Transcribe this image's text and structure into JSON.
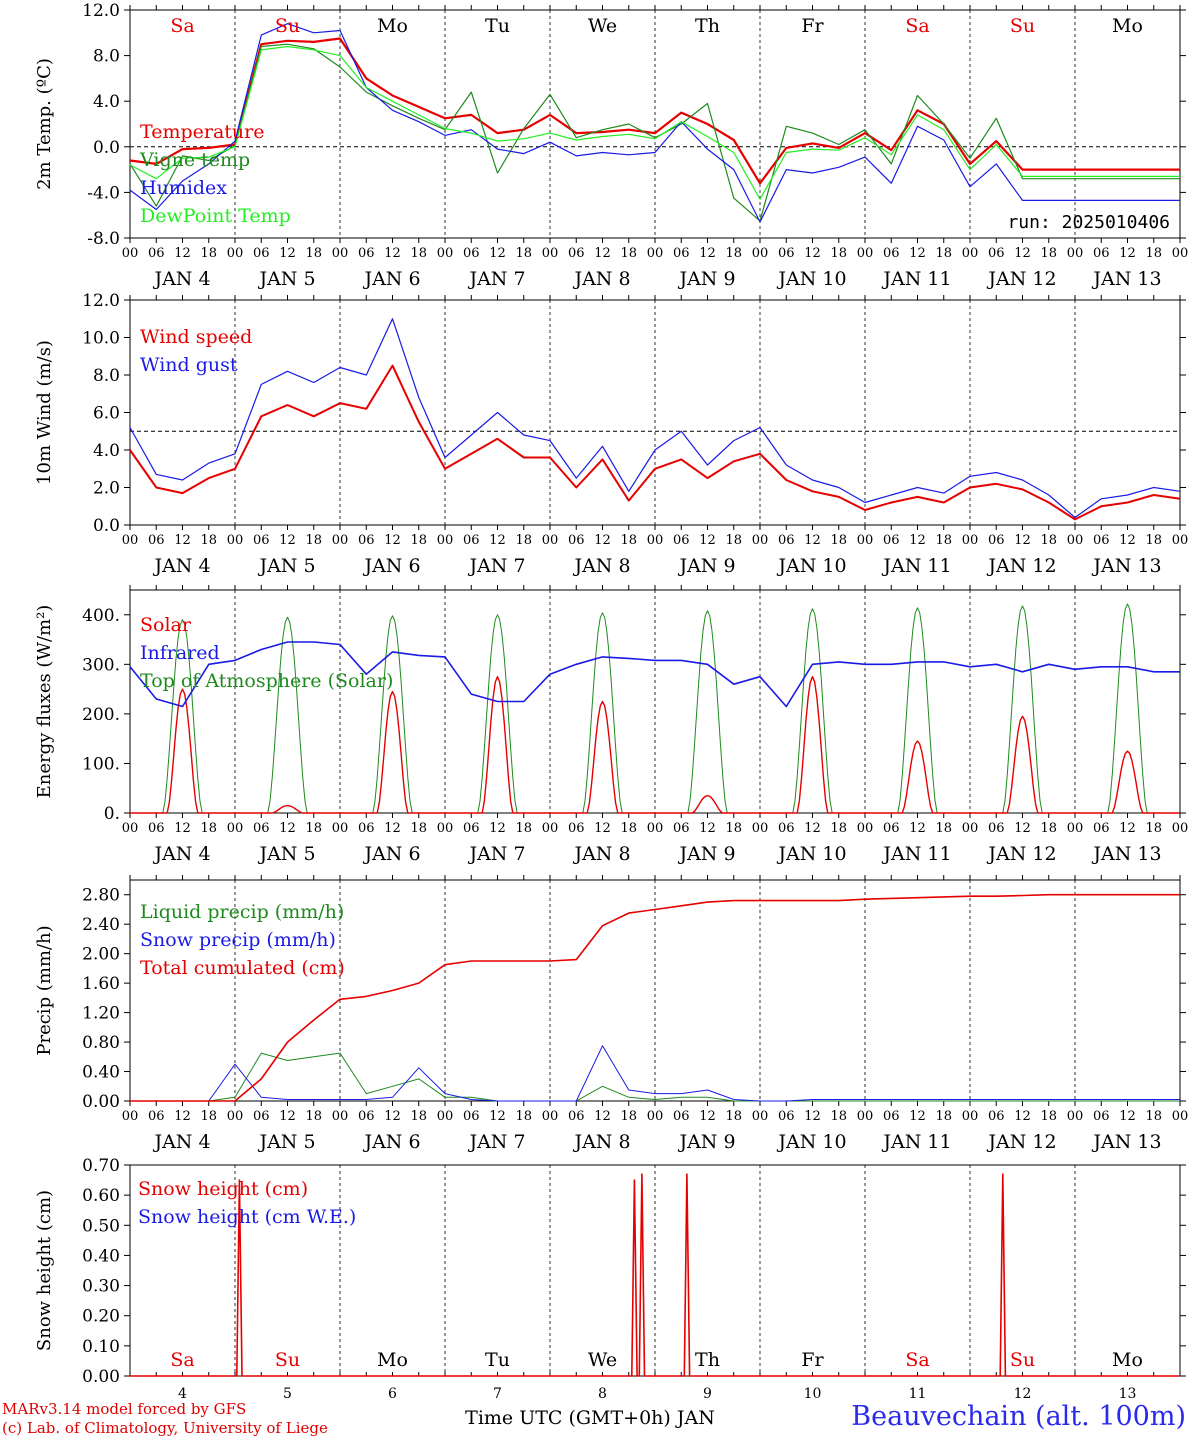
{
  "footer": {
    "credit_line1": "MARv3.14 model forced by GFS",
    "credit_line2": "(c) Lab. of Climatology, University of Liege",
    "station": "Beauvechain (alt. 100m)",
    "xaxis_label": "Time UTC (GMT+0h) JAN"
  },
  "x_axis": {
    "hour_ticks": [
      "00",
      "06",
      "12",
      "18"
    ],
    "date_labels": [
      "JAN  4",
      "JAN  5",
      "JAN  6",
      "JAN  7",
      "JAN  8",
      "JAN  9",
      "JAN 10",
      "JAN 11",
      "JAN 12",
      "JAN 13"
    ],
    "day_names": [
      "Sa",
      "Su",
      "Mo",
      "Tu",
      "We",
      "Th",
      "Fr",
      "Sa",
      "Su",
      "Mo"
    ],
    "weekend_indices": [
      0,
      1,
      7,
      8
    ],
    "bottom_day_numbers": [
      "4",
      "5",
      "6",
      "7",
      "8",
      "9",
      "10",
      "11",
      "12",
      "13"
    ]
  },
  "colors": {
    "red": "#e60000",
    "green": "#1e8a1e",
    "blue": "#1a1ae6",
    "lightgreen": "#22ee22",
    "black": "#000000"
  },
  "chart_data": [
    {
      "type": "line",
      "ylabel": "2m Temp. (ºC)",
      "ylim": [
        -8,
        12
      ],
      "yticks": [
        "-8.0",
        "-4.0",
        "0.0",
        "4.0",
        "8.0",
        "12.0"
      ],
      "ref_line": 0,
      "run_label": "run: 2025010406",
      "x_hours": [
        0,
        6,
        12,
        18,
        24,
        30,
        36,
        42,
        48,
        54,
        60,
        66,
        72,
        78,
        84,
        90,
        96,
        102,
        108,
        114,
        120,
        126,
        132,
        138,
        144,
        150,
        156,
        162,
        168,
        174,
        180,
        186,
        192,
        198,
        204,
        210,
        216,
        222,
        228,
        234,
        240
      ],
      "series": [
        {
          "name": "Temperature",
          "color": "red",
          "width": 2.2,
          "values": [
            -1.2,
            -1.5,
            -0.2,
            -0.1,
            0.2,
            9.0,
            9.3,
            9.2,
            9.5,
            6.0,
            4.5,
            3.5,
            2.5,
            2.8,
            1.2,
            1.5,
            2.8,
            1.2,
            1.3,
            1.5,
            1.2,
            3.0,
            2.0,
            0.6,
            -3.2,
            -0.1,
            0.3,
            -0.1,
            1.2,
            -0.3,
            3.2,
            2.0,
            -1.5,
            0.5,
            -2.0,
            -2.0,
            -2.0,
            -2.0,
            -2.0,
            -2.0,
            -2.0
          ]
        },
        {
          "name": "Vigne temp",
          "color": "green",
          "width": 1.2,
          "values": [
            -1.5,
            -5.2,
            -0.8,
            -1.2,
            0.1,
            8.8,
            9.0,
            8.6,
            7.0,
            4.8,
            3.6,
            2.5,
            1.5,
            4.8,
            -2.3,
            1.6,
            4.6,
            0.8,
            1.5,
            2.0,
            0.8,
            2.0,
            3.8,
            -4.5,
            -6.5,
            1.8,
            1.2,
            0.2,
            1.5,
            -1.5,
            4.5,
            2.0,
            -1.0,
            2.5,
            -2.8,
            -2.8,
            -2.8,
            -2.8,
            -2.8,
            -2.8,
            -2.8
          ]
        },
        {
          "name": "Humidex",
          "color": "blue",
          "width": 1.2,
          "values": [
            -3.8,
            -5.5,
            -3.0,
            -1.5,
            0.5,
            9.8,
            10.8,
            10.0,
            10.2,
            5.2,
            3.2,
            2.2,
            1.0,
            1.5,
            -0.2,
            -0.6,
            0.4,
            -0.8,
            -0.5,
            -0.7,
            -0.5,
            2.2,
            -0.2,
            -2.0,
            -6.6,
            -2.0,
            -2.3,
            -1.8,
            -0.9,
            -3.2,
            1.8,
            0.6,
            -3.5,
            -1.5,
            -4.7,
            -4.7,
            -4.7,
            -4.7,
            -4.7,
            -4.7,
            -4.7
          ]
        },
        {
          "name": "DewPoint Temp",
          "color": "lightgreen",
          "width": 1.2,
          "values": [
            -1.6,
            -2.8,
            -1.0,
            -0.9,
            0.0,
            8.5,
            8.8,
            8.5,
            8.0,
            5.2,
            4.0,
            2.8,
            1.6,
            1.2,
            0.5,
            0.7,
            1.2,
            0.6,
            0.9,
            1.1,
            0.7,
            2.2,
            0.9,
            -0.5,
            -4.6,
            -0.5,
            -0.2,
            -0.3,
            0.8,
            -0.7,
            2.8,
            1.5,
            -2.0,
            0.2,
            -2.6,
            -2.6,
            -2.6,
            -2.6,
            -2.6,
            -2.6,
            -2.6
          ]
        }
      ]
    },
    {
      "type": "line",
      "ylabel": "10m Wind (m/s)",
      "ylim": [
        0,
        12
      ],
      "yticks": [
        "0.0",
        "2.0",
        "4.0",
        "6.0",
        "8.0",
        "10.0",
        "12.0"
      ],
      "ref_line": 5,
      "x_hours": [
        0,
        6,
        12,
        18,
        24,
        30,
        36,
        42,
        48,
        54,
        60,
        66,
        72,
        78,
        84,
        90,
        96,
        102,
        108,
        114,
        120,
        126,
        132,
        138,
        144,
        150,
        156,
        162,
        168,
        174,
        180,
        186,
        192,
        198,
        204,
        210,
        216,
        222,
        228,
        234,
        240
      ],
      "series": [
        {
          "name": "Wind speed",
          "color": "red",
          "width": 2.0,
          "values": [
            4.0,
            2.0,
            1.7,
            2.5,
            3.0,
            5.8,
            6.4,
            5.8,
            6.5,
            6.2,
            8.5,
            5.5,
            3.0,
            3.8,
            4.6,
            3.6,
            3.6,
            2.0,
            3.5,
            1.3,
            3.0,
            3.5,
            2.5,
            3.4,
            3.8,
            2.4,
            1.8,
            1.5,
            0.8,
            1.2,
            1.5,
            1.2,
            2.0,
            2.2,
            1.9,
            1.2,
            0.3,
            1.0,
            1.2,
            1.6,
            1.4
          ]
        },
        {
          "name": "Wind gust",
          "color": "blue",
          "width": 1.2,
          "values": [
            5.2,
            2.7,
            2.4,
            3.3,
            3.8,
            7.5,
            8.2,
            7.6,
            8.4,
            8.0,
            11.0,
            6.8,
            3.6,
            4.8,
            6.0,
            4.8,
            4.5,
            2.5,
            4.2,
            1.8,
            4.0,
            5.0,
            3.2,
            4.5,
            5.2,
            3.2,
            2.4,
            2.0,
            1.2,
            1.6,
            2.0,
            1.7,
            2.6,
            2.8,
            2.4,
            1.6,
            0.4,
            1.4,
            1.6,
            2.0,
            1.8
          ]
        }
      ]
    },
    {
      "type": "line",
      "ylabel": "Energy fluxes (W/m²)",
      "ylim": [
        0,
        450
      ],
      "yticks": [
        "0.",
        "100.",
        "200.",
        "300.",
        "400."
      ],
      "solar_peaks": [
        {
          "day": 0,
          "value": 250
        },
        {
          "day": 1,
          "value": 15
        },
        {
          "day": 2,
          "value": 245
        },
        {
          "day": 3,
          "value": 275
        },
        {
          "day": 4,
          "value": 225
        },
        {
          "day": 5,
          "value": 35
        },
        {
          "day": 6,
          "value": 275
        },
        {
          "day": 7,
          "value": 145
        },
        {
          "day": 8,
          "value": 195
        },
        {
          "day": 9,
          "value": 125
        }
      ],
      "toa_peaks": [
        {
          "day": 0,
          "value": 390
        },
        {
          "day": 1,
          "value": 395
        },
        {
          "day": 2,
          "value": 398
        },
        {
          "day": 3,
          "value": 400
        },
        {
          "day": 4,
          "value": 404
        },
        {
          "day": 5,
          "value": 408
        },
        {
          "day": 6,
          "value": 412
        },
        {
          "day": 7,
          "value": 414
        },
        {
          "day": 8,
          "value": 418
        },
        {
          "day": 9,
          "value": 422
        }
      ],
      "x_hours": [
        0,
        6,
        12,
        18,
        24,
        30,
        36,
        42,
        48,
        54,
        60,
        66,
        72,
        78,
        84,
        90,
        96,
        102,
        108,
        114,
        120,
        126,
        132,
        138,
        144,
        150,
        156,
        162,
        168,
        174,
        180,
        186,
        192,
        198,
        204,
        210,
        216,
        222,
        228,
        234,
        240
      ],
      "series": [
        {
          "name": "Solar",
          "color": "red",
          "width": 1.4
        },
        {
          "name": "Infrared",
          "color": "blue",
          "width": 1.6,
          "values": [
            295,
            230,
            215,
            300,
            308,
            330,
            345,
            345,
            340,
            280,
            325,
            318,
            315,
            240,
            225,
            225,
            280,
            300,
            315,
            312,
            308,
            308,
            300,
            260,
            275,
            215,
            300,
            305,
            300,
            300,
            305,
            305,
            295,
            300,
            285,
            300,
            290,
            295,
            295,
            285,
            285
          ]
        },
        {
          "name": "Top of Atmosphere (Solar)",
          "color": "green",
          "width": 1.0
        }
      ]
    },
    {
      "type": "line",
      "ylabel": "Precip (mm/h)",
      "ylim": [
        0,
        3.0
      ],
      "yticks": [
        "0.00",
        "0.40",
        "0.80",
        "1.20",
        "1.60",
        "2.00",
        "2.40",
        "2.80"
      ],
      "x_hours": [
        0,
        6,
        12,
        18,
        24,
        30,
        36,
        42,
        48,
        54,
        60,
        66,
        72,
        78,
        84,
        90,
        96,
        102,
        108,
        114,
        120,
        126,
        132,
        138,
        144,
        150,
        156,
        162,
        168,
        174,
        180,
        186,
        192,
        198,
        204,
        210,
        216,
        222,
        228,
        234,
        240
      ],
      "series": [
        {
          "name": "Liquid precip (mm/h)",
          "color": "green",
          "width": 1.0,
          "values": [
            0,
            0,
            0,
            0,
            0.05,
            0.65,
            0.55,
            0.6,
            0.65,
            0.1,
            0.2,
            0.3,
            0.05,
            0.05,
            0,
            0,
            0,
            0,
            0.2,
            0.05,
            0.02,
            0.05,
            0.05,
            0,
            0,
            0,
            0,
            0,
            0,
            0,
            0,
            0,
            0,
            0,
            0,
            0,
            0,
            0,
            0,
            0,
            0
          ]
        },
        {
          "name": "Snow precip (mm/h)",
          "color": "blue",
          "width": 1.0,
          "values": [
            0,
            0,
            0,
            0,
            0.5,
            0.05,
            0.02,
            0.02,
            0.02,
            0.02,
            0.05,
            0.45,
            0.1,
            0.02,
            0,
            0,
            0,
            0,
            0.75,
            0.15,
            0.1,
            0.1,
            0.15,
            0.02,
            0,
            0,
            0.02,
            0.02,
            0.02,
            0.02,
            0.02,
            0.02,
            0.02,
            0.02,
            0.02,
            0.02,
            0.02,
            0.02,
            0.02,
            0.02,
            0.02
          ]
        },
        {
          "name": "Total cumulated (cm)",
          "color": "red",
          "width": 1.6,
          "values": [
            0,
            0,
            0,
            0,
            0,
            0.3,
            0.8,
            1.1,
            1.38,
            1.42,
            1.5,
            1.6,
            1.85,
            1.9,
            1.9,
            1.9,
            1.9,
            1.92,
            2.38,
            2.55,
            2.6,
            2.65,
            2.7,
            2.72,
            2.72,
            2.72,
            2.72,
            2.72,
            2.74,
            2.75,
            2.76,
            2.77,
            2.78,
            2.78,
            2.79,
            2.8,
            2.8,
            2.8,
            2.8,
            2.8,
            2.8
          ]
        }
      ]
    },
    {
      "type": "line",
      "ylabel": "Snow height (cm)",
      "ylim": [
        0,
        0.7
      ],
      "yticks": [
        "0.00",
        "0.10",
        "0.20",
        "0.30",
        "0.40",
        "0.50",
        "0.60",
        "0.70"
      ],
      "x_hours": [
        0,
        30,
        31,
        32,
        33,
        34,
        35,
        36,
        37,
        45,
        46,
        47,
        48,
        49,
        50,
        51,
        52,
        53,
        54,
        55,
        56,
        57,
        58,
        59,
        60,
        61,
        62,
        63,
        64,
        65,
        240
      ],
      "series": [
        {
          "name": "Snow height (cm)",
          "color": "red",
          "width": 1.6,
          "spikes": [
            {
              "hour": 25.0,
              "value": 0.65
            },
            {
              "hour": 115.3,
              "value": 0.65
            },
            {
              "hour": 117.0,
              "value": 0.67
            },
            {
              "hour": 127.3,
              "value": 0.67
            },
            {
              "hour": 199.5,
              "value": 0.67
            }
          ]
        },
        {
          "name": "Snow height (cm W.E.)",
          "color": "blue",
          "width": 1.0
        }
      ]
    }
  ]
}
